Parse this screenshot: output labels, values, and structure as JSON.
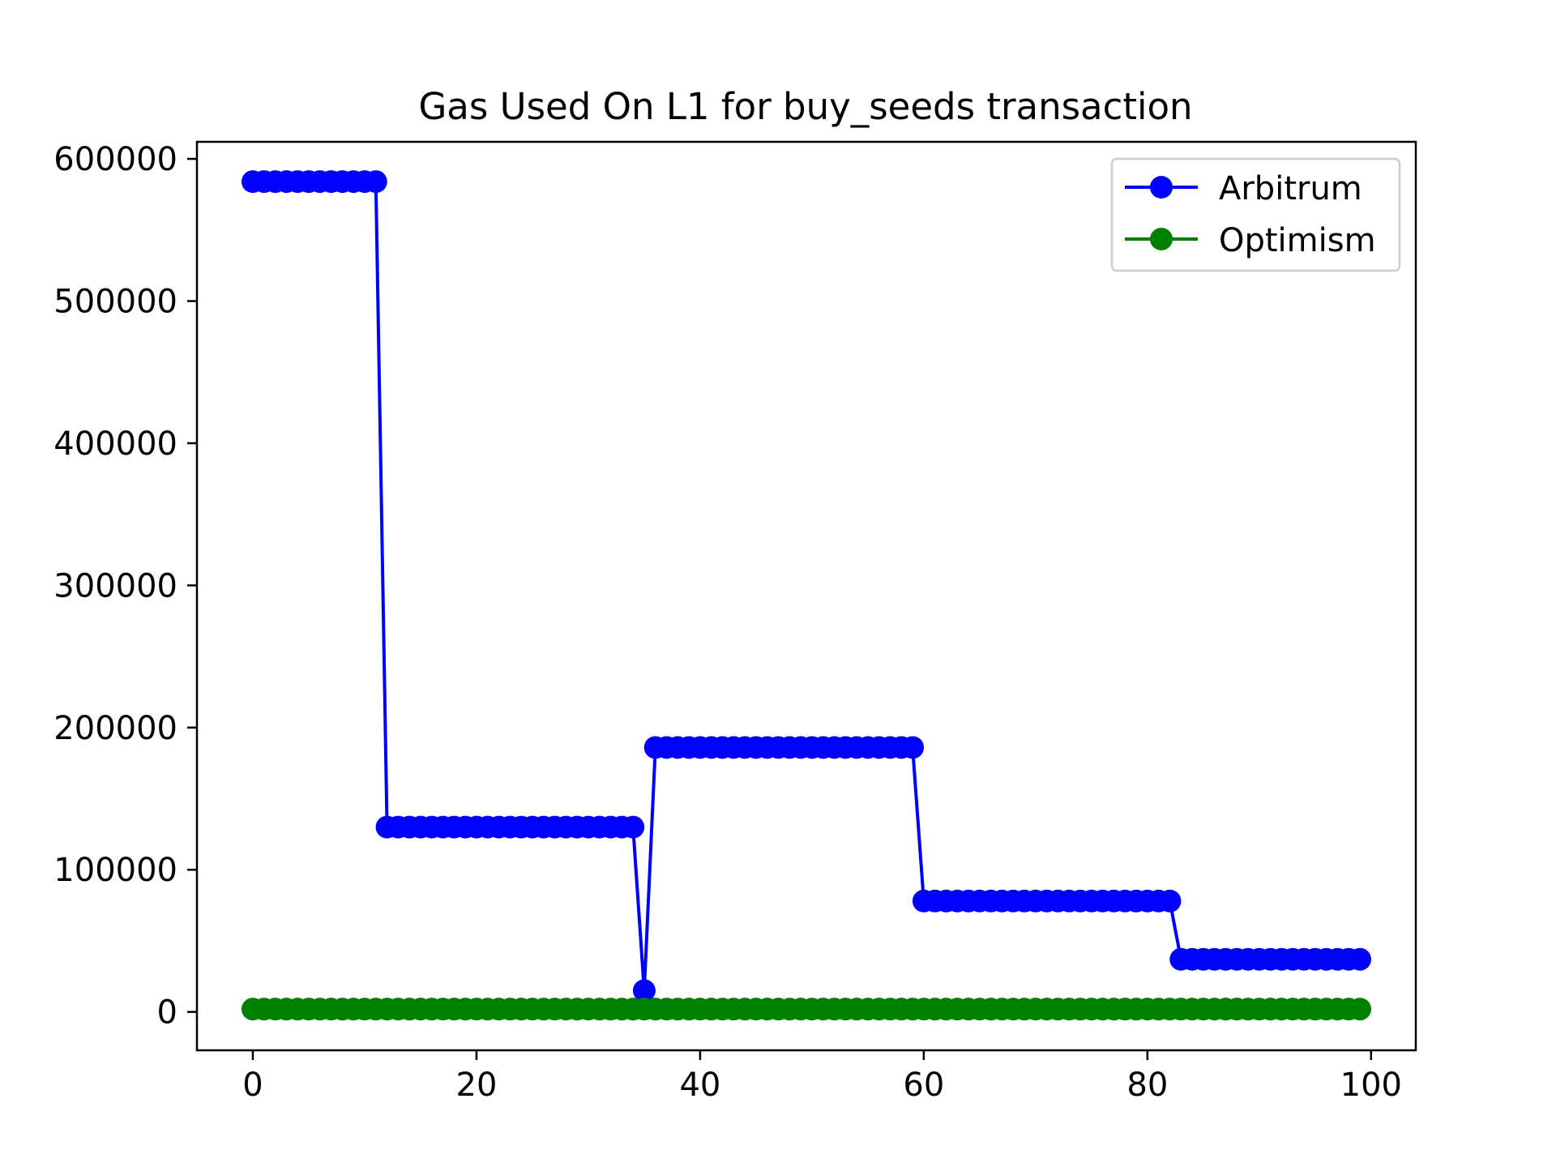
{
  "chart_data": {
    "type": "line",
    "title": "Gas Used On L1 for buy_seeds transaction",
    "xlabel": "",
    "ylabel": "",
    "xlim": [
      -5,
      104
    ],
    "ylim": [
      -27000,
      612000
    ],
    "x_ticks": [
      0,
      20,
      40,
      60,
      80,
      100
    ],
    "y_ticks": [
      0,
      100000,
      200000,
      300000,
      400000,
      500000,
      600000
    ],
    "x_tick_labels": [
      "0",
      "20",
      "40",
      "60",
      "80",
      "100"
    ],
    "y_tick_labels": [
      "0",
      "100000",
      "200000",
      "300000",
      "400000",
      "500000",
      "600000"
    ],
    "grid": false,
    "legend_position": "upper right",
    "segments_note_removed": true,
    "series": [
      {
        "name": "Arbitrum",
        "color": "#0000ff",
        "marker": "circle",
        "step_segments": [
          {
            "from": 0,
            "to": 11,
            "value": 584000
          },
          {
            "from": 12,
            "to": 34,
            "value": 130000
          },
          {
            "from": 35,
            "to": 35,
            "value": 15000
          },
          {
            "from": 36,
            "to": 59,
            "value": 186000
          },
          {
            "from": 60,
            "to": 82,
            "value": 78000
          },
          {
            "from": 83,
            "to": 99,
            "value": 37000
          }
        ]
      },
      {
        "name": "Optimism",
        "color": "#008000",
        "marker": "circle",
        "step_segments": [
          {
            "from": 0,
            "to": 99,
            "value": 2000
          }
        ]
      }
    ]
  }
}
